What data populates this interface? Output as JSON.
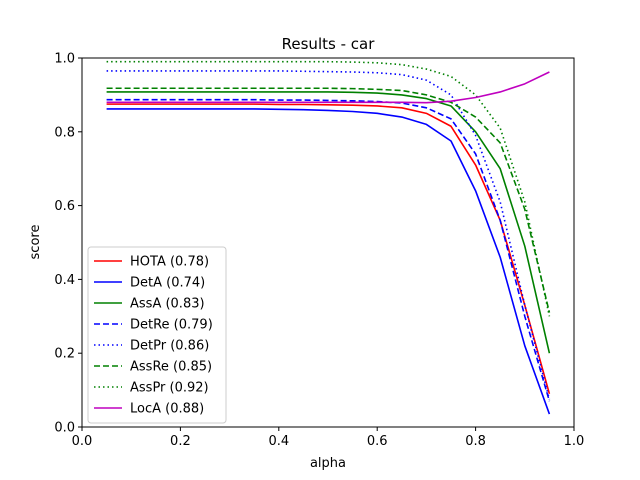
{
  "chart_data": {
    "type": "line",
    "title": "Results - car",
    "xlabel": "alpha",
    "ylabel": "score",
    "xlim": [
      0.0,
      1.0
    ],
    "ylim": [
      0.0,
      1.0
    ],
    "xticks": [
      0.0,
      0.2,
      0.4,
      0.6,
      0.8,
      1.0
    ],
    "yticks": [
      0.0,
      0.2,
      0.4,
      0.6,
      0.8,
      1.0
    ],
    "xtick_labels": [
      "0.0",
      "0.2",
      "0.4",
      "0.6",
      "0.8",
      "1.0"
    ],
    "ytick_labels": [
      "0.0",
      "0.2",
      "0.4",
      "0.6",
      "0.8",
      "1.0"
    ],
    "grid": false,
    "legend_position": "lower-left",
    "x": [
      0.05,
      0.1,
      0.15,
      0.2,
      0.25,
      0.3,
      0.35,
      0.4,
      0.45,
      0.5,
      0.55,
      0.6,
      0.65,
      0.7,
      0.75,
      0.8,
      0.85,
      0.9,
      0.95
    ],
    "series": [
      {
        "name": "HOTA (0.78)",
        "color": "#ff0000",
        "dash": "solid",
        "values": [
          0.875,
          0.875,
          0.875,
          0.875,
          0.875,
          0.875,
          0.875,
          0.874,
          0.874,
          0.873,
          0.872,
          0.87,
          0.865,
          0.85,
          0.815,
          0.71,
          0.56,
          0.33,
          0.09
        ]
      },
      {
        "name": "DetA (0.74)",
        "color": "#0000ff",
        "dash": "solid",
        "values": [
          0.862,
          0.862,
          0.862,
          0.862,
          0.862,
          0.862,
          0.862,
          0.861,
          0.86,
          0.858,
          0.855,
          0.85,
          0.84,
          0.82,
          0.775,
          0.64,
          0.46,
          0.22,
          0.035
        ]
      },
      {
        "name": "AssA (0.83)",
        "color": "#008000",
        "dash": "solid",
        "values": [
          0.908,
          0.908,
          0.908,
          0.908,
          0.908,
          0.908,
          0.908,
          0.908,
          0.908,
          0.908,
          0.907,
          0.905,
          0.9,
          0.89,
          0.87,
          0.8,
          0.7,
          0.49,
          0.2
        ]
      },
      {
        "name": "DetRe (0.79)",
        "color": "#0000ff",
        "dash": "dashed",
        "values": [
          0.887,
          0.887,
          0.887,
          0.887,
          0.887,
          0.887,
          0.887,
          0.886,
          0.886,
          0.885,
          0.884,
          0.882,
          0.878,
          0.865,
          0.835,
          0.74,
          0.56,
          0.3,
          0.07
        ]
      },
      {
        "name": "DetPr (0.86)",
        "color": "#0000ff",
        "dash": "dotted",
        "values": [
          0.965,
          0.965,
          0.965,
          0.965,
          0.965,
          0.965,
          0.965,
          0.965,
          0.964,
          0.963,
          0.962,
          0.96,
          0.955,
          0.94,
          0.9,
          0.79,
          0.61,
          0.33,
          0.075
        ]
      },
      {
        "name": "AssRe (0.85)",
        "color": "#008000",
        "dash": "dashed",
        "values": [
          0.918,
          0.918,
          0.918,
          0.918,
          0.918,
          0.918,
          0.918,
          0.918,
          0.918,
          0.918,
          0.917,
          0.915,
          0.912,
          0.9,
          0.88,
          0.84,
          0.77,
          0.59,
          0.31
        ]
      },
      {
        "name": "AssPr (0.92)",
        "color": "#008000",
        "dash": "dotted",
        "values": [
          0.99,
          0.99,
          0.99,
          0.99,
          0.99,
          0.99,
          0.99,
          0.99,
          0.99,
          0.99,
          0.989,
          0.987,
          0.982,
          0.97,
          0.95,
          0.9,
          0.81,
          0.61,
          0.3
        ]
      },
      {
        "name": "LocA (0.88)",
        "color": "#bf00bf",
        "dash": "solid",
        "values": [
          0.88,
          0.88,
          0.88,
          0.88,
          0.88,
          0.88,
          0.88,
          0.88,
          0.88,
          0.88,
          0.88,
          0.88,
          0.88,
          0.879,
          0.883,
          0.893,
          0.908,
          0.93,
          0.962
        ]
      }
    ]
  }
}
